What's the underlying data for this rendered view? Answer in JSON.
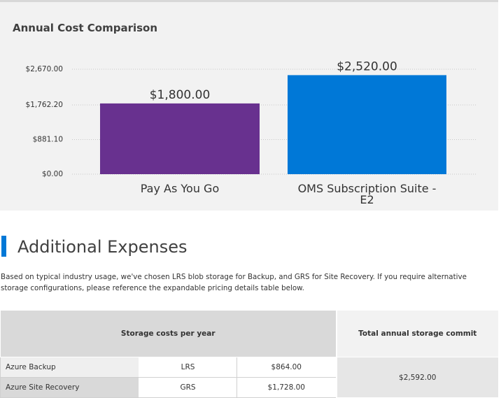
{
  "chart_panel": {
    "title": "Annual Cost Comparison"
  },
  "chart_data": {
    "type": "bar",
    "title": "Annual Cost Comparison",
    "categories": [
      "Pay As You Go",
      "OMS Subscription Suite - E2"
    ],
    "values": [
      1800.0,
      2520.0
    ],
    "data_labels": [
      "$1,800.00",
      "$2,520.00"
    ],
    "bar_colors": [
      "#68318f",
      "#0078d7"
    ],
    "y_ticks": [
      0,
      881.1,
      1762.2,
      2670.0
    ],
    "y_tick_labels": [
      "$0.00",
      "$881.10",
      "$1,762.20",
      "$2,670.00"
    ],
    "ylim": [
      0,
      2670.0
    ],
    "xlabel": "",
    "ylabel": "",
    "grid": true
  },
  "additional_expenses": {
    "title": "Additional Expenses",
    "description": "Based on typical industry usage, we've chosen LRS blob storage for Backup, and GRS for Site Recovery. If you require alternative storage configurations, please reference the expandable pricing details table below.",
    "accent_color": "#0078d7"
  },
  "storage_table": {
    "headers": {
      "storage_costs": "Storage costs per year",
      "total_commit": "Total annual storage commit"
    },
    "rows": [
      {
        "service": "Azure Backup",
        "redundancy": "LRS",
        "cost": "$864.00"
      },
      {
        "service": "Azure Site Recovery",
        "redundancy": "GRS",
        "cost": "$1,728.00"
      }
    ],
    "total": "$2,592.00"
  }
}
